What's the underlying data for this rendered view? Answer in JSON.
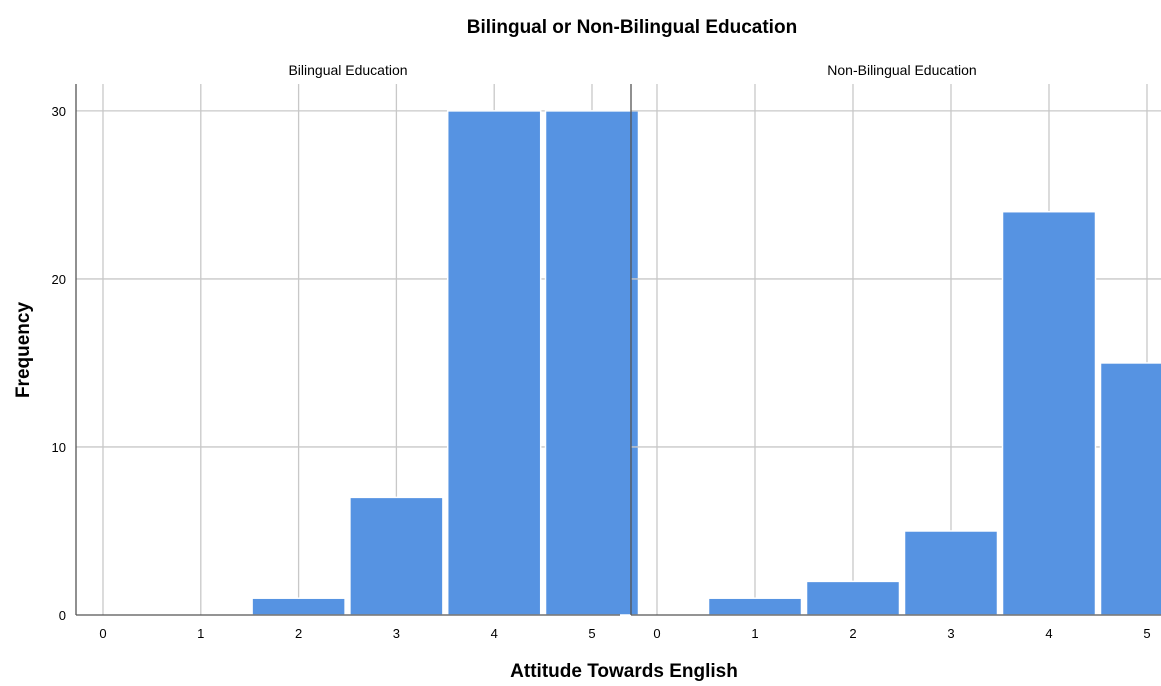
{
  "chart_data": {
    "type": "bar",
    "title": "Bilingual or Non-Bilingual Education",
    "xlabel": "Attitude Towards English",
    "ylabel": "Frequency",
    "ylim": [
      0,
      31.6
    ],
    "yticks": [
      "0",
      "10",
      "20",
      "30"
    ],
    "grid": true,
    "bar_color": "#5693e2",
    "panels": [
      {
        "name": "Bilingual Education",
        "categories": [
          "0",
          "1",
          "2",
          "3",
          "4",
          "5"
        ],
        "values": [
          0,
          0,
          1,
          7,
          30,
          30
        ]
      },
      {
        "name": "Non-Bilingual Education",
        "categories": [
          "0",
          "1",
          "2",
          "3",
          "4",
          "5"
        ],
        "values": [
          0,
          1,
          2,
          5,
          24,
          15
        ]
      }
    ]
  }
}
